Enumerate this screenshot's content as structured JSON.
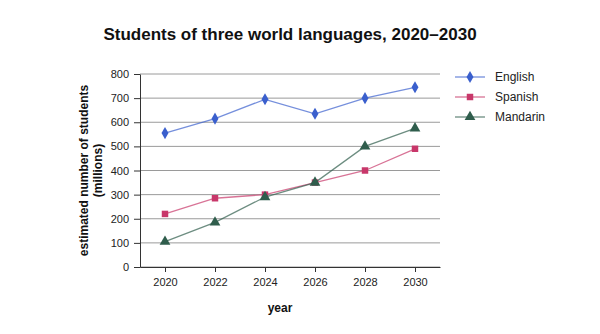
{
  "chart_data": {
    "type": "line",
    "title": "Students of three world languages, 2020–2030",
    "x_label": "year",
    "y_label": "estimated number of students (millions)",
    "x": [
      2020,
      2022,
      2024,
      2026,
      2028,
      2030
    ],
    "series": [
      {
        "name": "English",
        "color": "#3a5fcd",
        "marker": "diamond",
        "values": [
          555,
          615,
          695,
          635,
          700,
          745
        ]
      },
      {
        "name": "Spanish",
        "color": "#c8376a",
        "marker": "square",
        "values": [
          220,
          285,
          300,
          350,
          400,
          490
        ]
      },
      {
        "name": "Mandarin",
        "color": "#2f5d4c",
        "marker": "triangle",
        "values": [
          105,
          185,
          290,
          350,
          500,
          575
        ]
      }
    ],
    "xlim": [
      2019,
      2031
    ],
    "xticks": [
      2020,
      2022,
      2024,
      2026,
      2028,
      2030
    ],
    "ylim": [
      0,
      800
    ],
    "yticks": [
      0,
      100,
      200,
      300,
      400,
      500,
      600,
      700,
      800
    ],
    "grid": true,
    "legend": "right"
  }
}
